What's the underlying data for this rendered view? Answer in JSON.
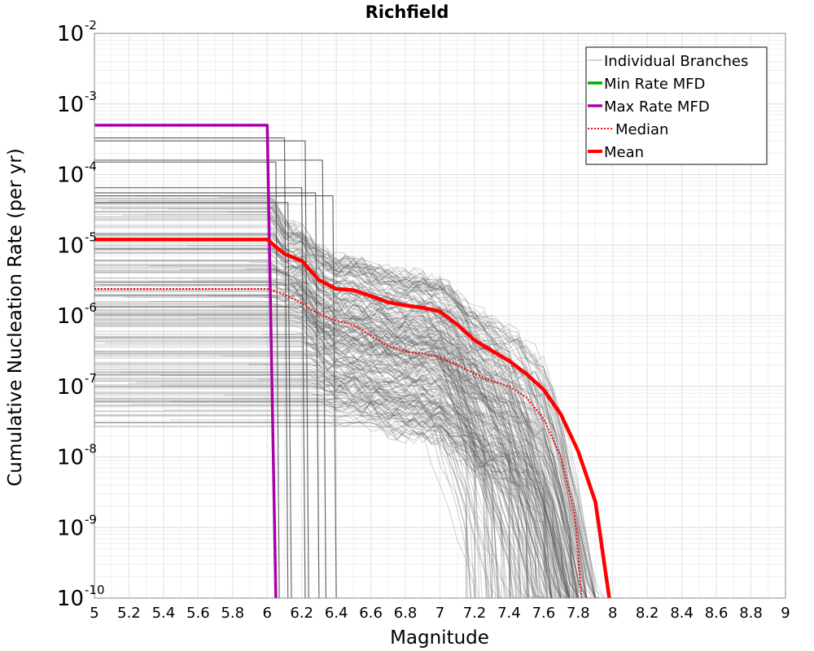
{
  "chart_data": {
    "type": "line",
    "title": "Richfield",
    "xlabel": "Magnitude",
    "ylabel": "Cumulative Nucleation Rate (per yr)",
    "xlim": [
      5,
      9
    ],
    "ylim": [
      1e-10,
      0.01
    ],
    "yscale": "log",
    "grid": true,
    "legend_position": "top-right",
    "x_ticks": [
      "5",
      "5.2",
      "5.4",
      "5.6",
      "5.8",
      "6",
      "6.2",
      "6.4",
      "6.6",
      "6.8",
      "7",
      "7.2",
      "7.4",
      "7.6",
      "7.8",
      "8",
      "8.2",
      "8.4",
      "8.6",
      "8.8",
      "9"
    ],
    "y_ticks": [
      {
        "base": "10",
        "exp": "-2"
      },
      {
        "base": "10",
        "exp": "-3"
      },
      {
        "base": "10",
        "exp": "-4"
      },
      {
        "base": "10",
        "exp": "-5"
      },
      {
        "base": "10",
        "exp": "-6"
      },
      {
        "base": "10",
        "exp": "-7"
      },
      {
        "base": "10",
        "exp": "-8"
      },
      {
        "base": "10",
        "exp": "-9"
      },
      {
        "base": "10",
        "exp": "-10"
      }
    ],
    "colors": {
      "branches": "#555555",
      "min": "#00aa00",
      "max": "#aa00aa",
      "median": "#ff0000",
      "mean": "#ff0000"
    },
    "legend": [
      {
        "label": "Individual Branches",
        "style": "thin-gray"
      },
      {
        "label": "Min Rate MFD",
        "style": "green"
      },
      {
        "label": "Max Rate MFD",
        "style": "purple"
      },
      {
        "label": "Median",
        "style": "dotted-red"
      },
      {
        "label": "Mean",
        "style": "thick-red"
      }
    ],
    "series": [
      {
        "name": "Max Rate MFD",
        "x": [
          5.0,
          6.0,
          6.05
        ],
        "y": [
          0.0005,
          0.0005,
          1e-10
        ]
      },
      {
        "name": "Mean",
        "x": [
          5.0,
          6.0,
          6.1,
          6.2,
          6.3,
          6.4,
          6.5,
          6.6,
          6.7,
          6.8,
          6.9,
          7.0,
          7.1,
          7.2,
          7.3,
          7.4,
          7.5,
          7.6,
          7.7,
          7.8,
          7.9,
          7.98
        ],
        "y": [
          1.2e-05,
          1.2e-05,
          7.5e-06,
          6e-06,
          3.2e-06,
          2.4e-06,
          2.3e-06,
          1.9e-06,
          1.55e-06,
          1.4e-06,
          1.3e-06,
          1.15e-06,
          7.5e-07,
          4.5e-07,
          3.2e-07,
          2.3e-07,
          1.5e-07,
          9e-08,
          4e-08,
          1.2e-08,
          2.3e-09,
          1e-10
        ]
      },
      {
        "name": "Median",
        "x": [
          5.0,
          6.0,
          6.1,
          6.2,
          6.3,
          6.4,
          6.5,
          6.6,
          6.7,
          6.8,
          6.9,
          7.0,
          7.1,
          7.2,
          7.3,
          7.4,
          7.5,
          7.6,
          7.7,
          7.78,
          7.82
        ],
        "y": [
          2.4e-06,
          2.4e-06,
          2e-06,
          1.5e-06,
          1.05e-06,
          8.5e-07,
          7.5e-07,
          5.2e-07,
          3.7e-07,
          3.1e-07,
          2.9e-07,
          2.6e-07,
          2e-07,
          1.5e-07,
          1.2e-07,
          1e-07,
          7e-08,
          3.5e-08,
          1e-08,
          1.5e-09,
          1e-10
        ]
      }
    ]
  }
}
